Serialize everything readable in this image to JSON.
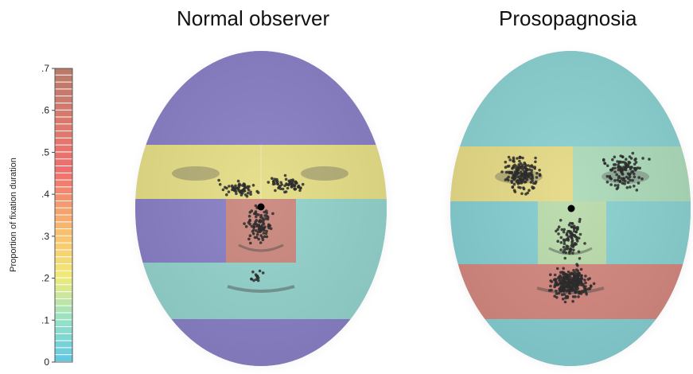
{
  "titles": {
    "normal": "Normal observer",
    "prosopagnosia": "Prosopagnosia"
  },
  "colorbar": {
    "label": "Proportion of fixation duration",
    "ticks": [
      "0",
      ".1",
      ".2",
      ".3",
      ".4",
      ".5",
      ".6",
      ".7"
    ],
    "min": 0,
    "max": 0.7
  },
  "panels": [
    {
      "id": "normal",
      "regions": [
        {
          "name": "forehead",
          "value": 0.01
        },
        {
          "name": "eyes",
          "value": 0.21
        },
        {
          "name": "left-cheek",
          "value": 0.01
        },
        {
          "name": "nose",
          "value": 0.62
        },
        {
          "name": "right-cheek",
          "value": 0.07
        },
        {
          "name": "mouth",
          "value": 0.07
        },
        {
          "name": "chin",
          "value": 0.01
        }
      ]
    },
    {
      "id": "prosopagnosia",
      "regions": [
        {
          "name": "forehead",
          "value": 0.05
        },
        {
          "name": "left-eye",
          "value": 0.22
        },
        {
          "name": "right-eye",
          "value": 0.12
        },
        {
          "name": "left-cheek",
          "value": 0.04
        },
        {
          "name": "nose",
          "value": 0.14
        },
        {
          "name": "right-cheek",
          "value": 0.05
        },
        {
          "name": "mouth",
          "value": 0.58
        },
        {
          "name": "chin",
          "value": 0.04
        }
      ]
    }
  ],
  "colors": {
    "low": "#5fc4dc",
    "high": "#b97a6a",
    "fixation_dot": "#2b2b2b",
    "center_dot": "#000000"
  }
}
